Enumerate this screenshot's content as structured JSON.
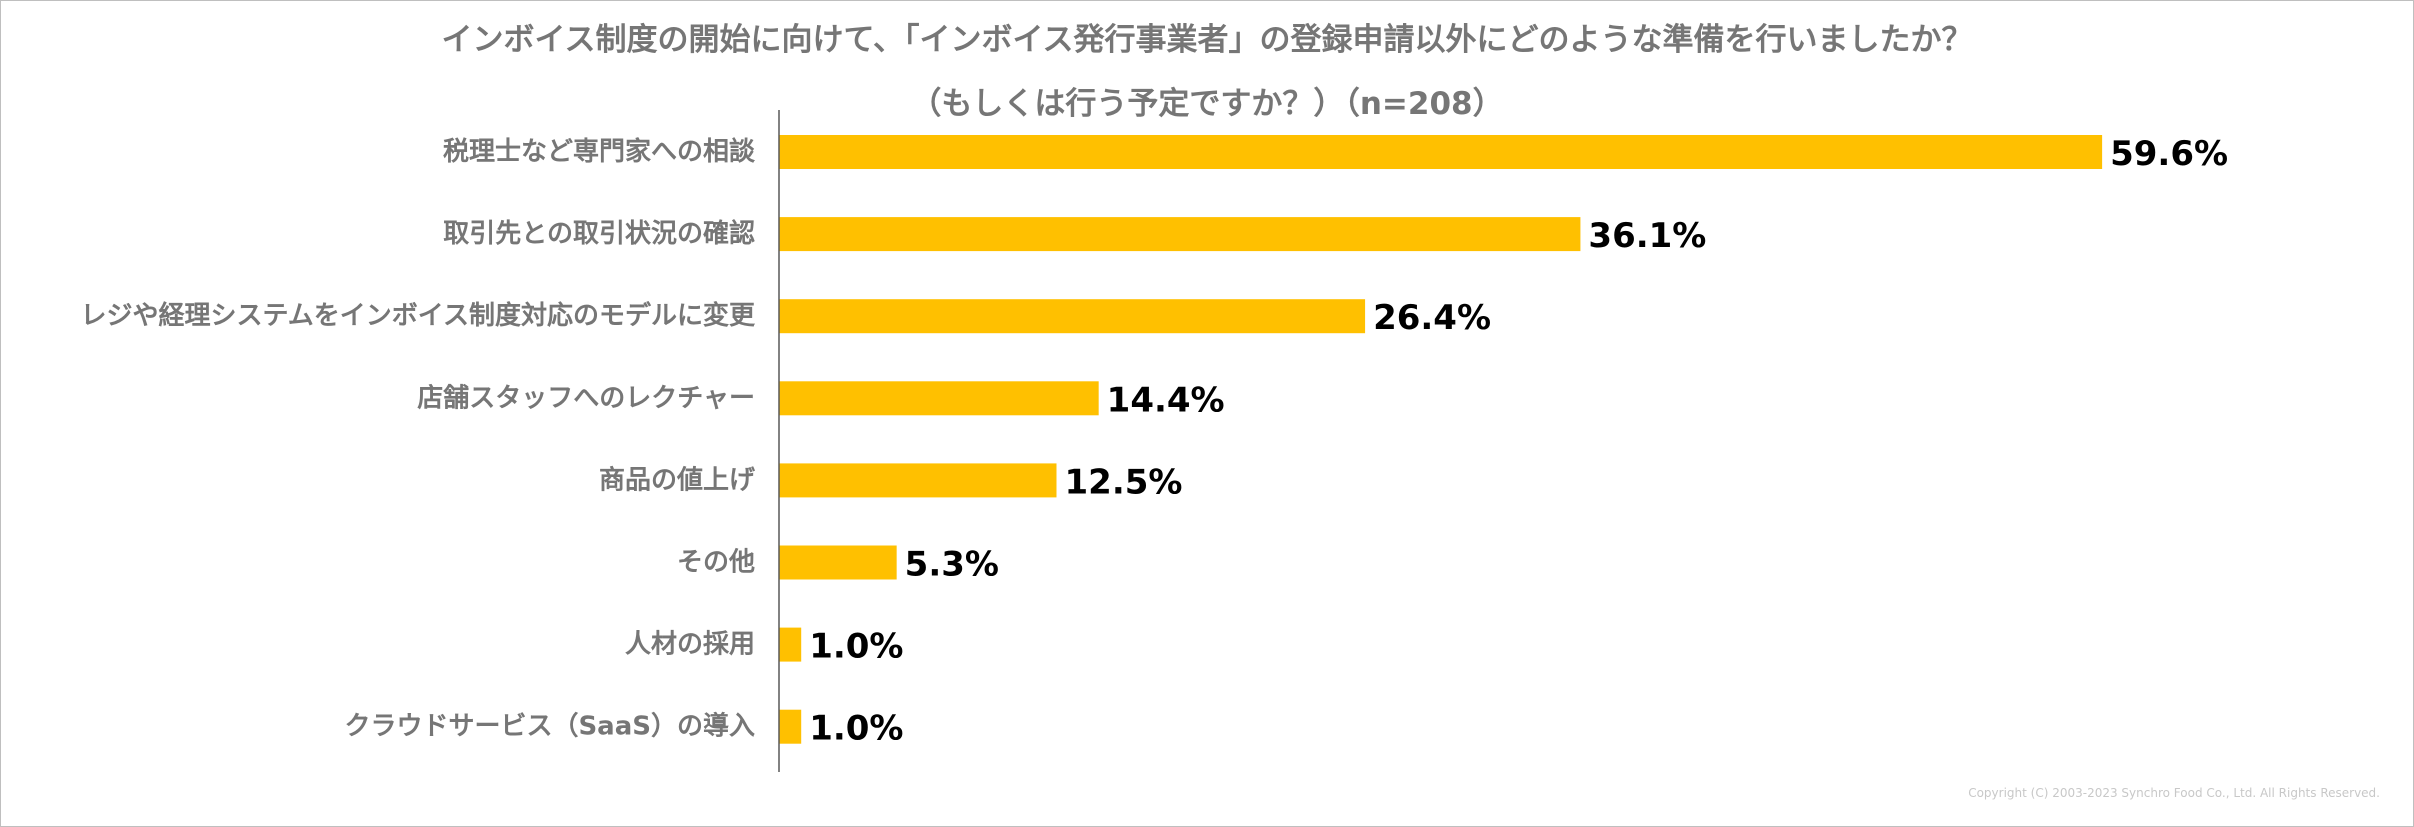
{
  "chart_data": {
    "type": "bar",
    "orientation": "horizontal",
    "title": "インボイス制度の開始に向けて、「インボイス発行事業者」の登録申請以外にどのような準備を行いましたか？",
    "subtitle": "（もしくは行う予定ですか？）（n=208）",
    "categories": [
      "税理士など専門家への相談",
      "取引先との取引状況の確認",
      "レジや経理システムをインボイス制度対応のモデルに変更",
      "店舗スタッフへのレクチャー",
      "商品の値上げ",
      "その他",
      "人材の採用",
      "クラウドサービス（SaaS）の導入"
    ],
    "values": [
      59.6,
      36.1,
      26.4,
      14.4,
      12.5,
      5.3,
      1.0,
      1.0
    ],
    "value_labels": [
      "59.6%",
      "36.1%",
      "26.4%",
      "14.4%",
      "12.5%",
      "5.3%",
      "1.0%",
      "1.0%"
    ],
    "xlim": [
      0,
      60
    ],
    "grid": false,
    "legend": "none",
    "bar_color": "#FFC000"
  },
  "copyright": "Copyright (C) 2003-2023 Synchro Food Co., Ltd. All Rights Reserved."
}
